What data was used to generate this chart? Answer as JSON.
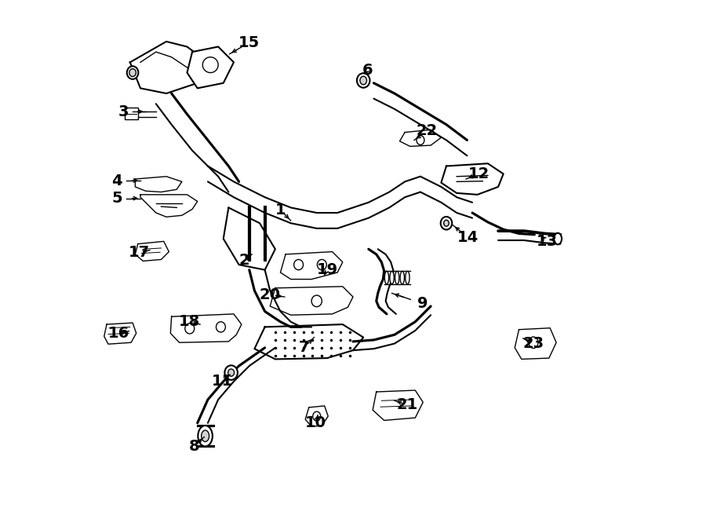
{
  "title": "",
  "background_color": "#ffffff",
  "line_color": "#000000",
  "label_color": "#000000",
  "font_size_num": 14,
  "dpi": 100,
  "figw": 9.0,
  "figh": 6.61
}
